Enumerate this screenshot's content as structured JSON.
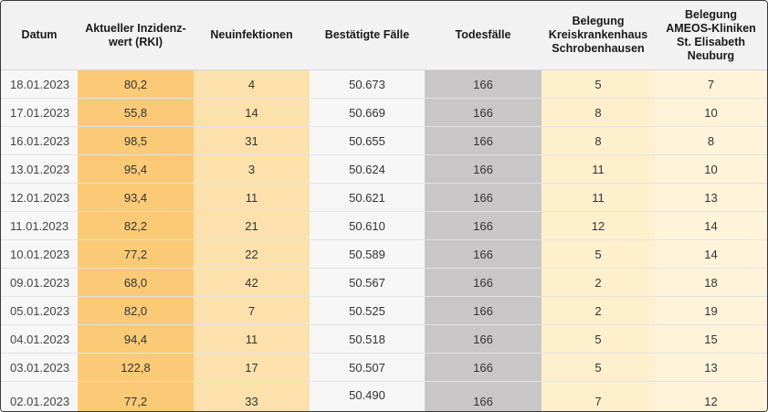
{
  "table": {
    "headers": [
      "Datum",
      "Aktueller Inzidenz-\nwert (RKI)",
      "Neuinfektionen",
      "Bestätigte Fälle",
      "Todesfälle",
      "Belegung\nKreiskrankenhaus\nSchrobenhausen",
      "Belegung\nAMEOS-Kliniken\nSt. Elisabeth\nNeuburg"
    ],
    "rows": [
      [
        "18.01.2023",
        "80,2",
        "4",
        "50.673",
        "166",
        "5",
        "7"
      ],
      [
        "17.01.2023",
        "55,8",
        "14",
        "50.669",
        "166",
        "8",
        "10"
      ],
      [
        "16.01.2023",
        "98,5",
        "31",
        "50.655",
        "166",
        "8",
        "8"
      ],
      [
        "13.01.2023",
        "95,4",
        "3",
        "50.624",
        "166",
        "11",
        "10"
      ],
      [
        "12.01.2023",
        "93,4",
        "11",
        "50.621",
        "166",
        "11",
        "13"
      ],
      [
        "11.01.2023",
        "82,2",
        "21",
        "50.610",
        "166",
        "12",
        "14"
      ],
      [
        "10.01.2023",
        "77,2",
        "22",
        "50.589",
        "166",
        "5",
        "14"
      ],
      [
        "09.01.2023",
        "68,0",
        "42",
        "50.567",
        "166",
        "2",
        "18"
      ],
      [
        "05.01.2023",
        "82,0",
        "7",
        "50.525",
        "166",
        "2",
        "19"
      ],
      [
        "04.01.2023",
        "94,4",
        "11",
        "50.518",
        "166",
        "5",
        "15"
      ],
      [
        "03.01.2023",
        "122,8",
        "17",
        "50.507",
        "166",
        "5",
        "13"
      ],
      [
        "02.01.2023",
        "77,2",
        "33",
        "50.490",
        "166",
        "7",
        "12"
      ]
    ]
  },
  "colors": {
    "incidence_column": "#fbca76",
    "new_infections_column": "#fce1ac",
    "deaths_column": "#c9c6c8",
    "hospital_column": "#fef0cc",
    "ameos_column": "#fff4da",
    "header_background": "#f2f2f2"
  }
}
